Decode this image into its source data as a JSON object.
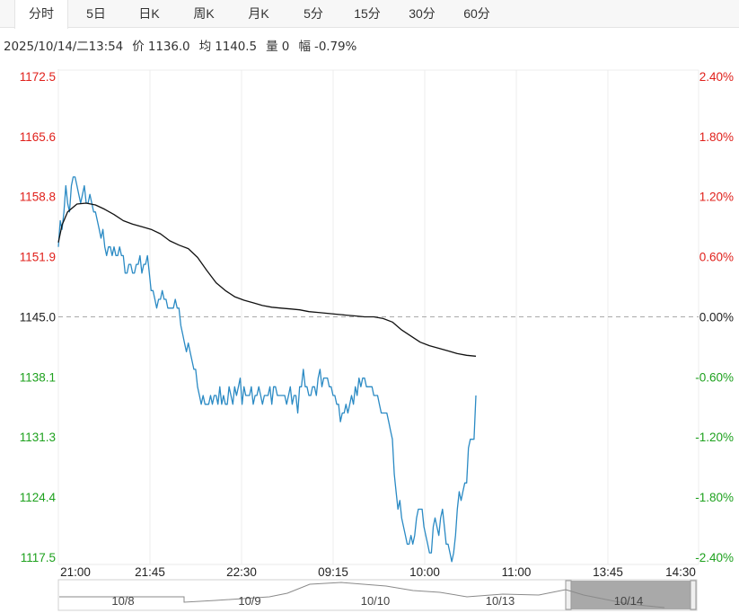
{
  "tabs": [
    {
      "label": "分时",
      "active": true
    },
    {
      "label": "5日"
    },
    {
      "label": "日K"
    },
    {
      "label": "周K"
    },
    {
      "label": "月K"
    },
    {
      "label": "5分"
    },
    {
      "label": "15分"
    },
    {
      "label": "30分"
    },
    {
      "label": "60分"
    }
  ],
  "info": {
    "datetime": "2025/10/14/二13:54",
    "price": "价 1136.0",
    "avg": "均 1140.5",
    "volume": "量 0",
    "change": "幅 -0.79%"
  },
  "colors": {
    "up": "#e0201b",
    "down": "#1ea11e",
    "neutral": "#222222",
    "price_line": "#2a8ac4",
    "avg_line": "#111111"
  },
  "navigator": {
    "dates": [
      "10/8",
      "10/9",
      "10/10",
      "10/13",
      "10/14"
    ]
  },
  "chart_data": {
    "type": "line",
    "base_price": 1145.0,
    "ylim": [
      1117.5,
      1172.5
    ],
    "y_ticks_left": [
      "1172.5",
      "1165.6",
      "1158.8",
      "1151.9",
      "1145.0",
      "1138.1",
      "1131.3",
      "1124.4",
      "1117.5"
    ],
    "y_ticks_right": [
      "2.40%",
      "1.80%",
      "1.20%",
      "0.60%",
      "0.00%",
      "-0.60%",
      "-1.20%",
      "-1.80%",
      "-2.40%"
    ],
    "x_ticks": [
      "21:00",
      "21:45",
      "22:30",
      "09:15",
      "10:00",
      "11:00",
      "13:45",
      "14:30"
    ],
    "x_range_minutes": [
      0,
      345
    ],
    "grid": true,
    "series": [
      {
        "name": "价",
        "points": [
          [
            0,
            1153
          ],
          [
            1,
            1156
          ],
          [
            2,
            1155
          ],
          [
            3,
            1157
          ],
          [
            4,
            1160
          ],
          [
            5,
            1158
          ],
          [
            6,
            1157
          ],
          [
            7,
            1160
          ],
          [
            8,
            1161
          ],
          [
            9,
            1161
          ],
          [
            10,
            1160
          ],
          [
            11,
            1159
          ],
          [
            12,
            1158
          ],
          [
            13,
            1159
          ],
          [
            14,
            1160
          ],
          [
            15,
            1158
          ],
          [
            16,
            1158
          ],
          [
            17,
            1159
          ],
          [
            18,
            1158
          ],
          [
            19,
            1157
          ],
          [
            20,
            1157
          ],
          [
            21,
            1156
          ],
          [
            22,
            1155
          ],
          [
            23,
            1154
          ],
          [
            24,
            1155
          ],
          [
            25,
            1153
          ],
          [
            26,
            1152
          ],
          [
            27,
            1153
          ],
          [
            28,
            1153
          ],
          [
            29,
            1152
          ],
          [
            30,
            1153
          ],
          [
            31,
            1152
          ],
          [
            32,
            1152
          ],
          [
            33,
            1153
          ],
          [
            34,
            1152
          ],
          [
            35,
            1152
          ],
          [
            36,
            1150
          ],
          [
            37,
            1150
          ],
          [
            38,
            1151
          ],
          [
            39,
            1151
          ],
          [
            40,
            1150
          ],
          [
            41,
            1150
          ],
          [
            42,
            1151
          ],
          [
            43,
            1151
          ],
          [
            44,
            1152
          ],
          [
            45,
            1150
          ],
          [
            46,
            1151
          ],
          [
            47,
            1151
          ],
          [
            48,
            1152
          ],
          [
            49,
            1150
          ],
          [
            50,
            1148
          ],
          [
            51,
            1148
          ],
          [
            52,
            1147
          ],
          [
            53,
            1146
          ],
          [
            54,
            1147
          ],
          [
            55,
            1147
          ],
          [
            56,
            1148
          ],
          [
            57,
            1147
          ],
          [
            58,
            1147
          ],
          [
            59,
            1146
          ],
          [
            60,
            1146
          ],
          [
            61,
            1146
          ],
          [
            62,
            1146
          ],
          [
            63,
            1147
          ],
          [
            64,
            1146
          ],
          [
            65,
            1146
          ],
          [
            66,
            1144
          ],
          [
            67,
            1143
          ],
          [
            68,
            1142
          ],
          [
            69,
            1141
          ],
          [
            70,
            1142
          ],
          [
            71,
            1141
          ],
          [
            72,
            1140
          ],
          [
            73,
            1139
          ],
          [
            74,
            1139
          ],
          [
            75,
            1137
          ],
          [
            76,
            1136
          ],
          [
            77,
            1135
          ],
          [
            78,
            1136
          ],
          [
            79,
            1135
          ],
          [
            80,
            1135
          ],
          [
            81,
            1135
          ],
          [
            82,
            1136
          ],
          [
            83,
            1135
          ],
          [
            84,
            1136
          ],
          [
            85,
            1136
          ],
          [
            86,
            1135
          ],
          [
            87,
            1137
          ],
          [
            88,
            1135
          ],
          [
            89,
            1136
          ],
          [
            90,
            1135
          ],
          [
            91,
            1135
          ],
          [
            92,
            1137
          ],
          [
            93,
            1136
          ],
          [
            94,
            1135
          ],
          [
            95,
            1137
          ],
          [
            96,
            1136
          ],
          [
            97,
            1137
          ],
          [
            98,
            1138
          ],
          [
            99,
            1135
          ],
          [
            100,
            1137
          ],
          [
            101,
            1136
          ],
          [
            102,
            1136
          ],
          [
            103,
            1136
          ],
          [
            104,
            1137
          ],
          [
            105,
            1135
          ],
          [
            106,
            1136
          ],
          [
            107,
            1136
          ],
          [
            108,
            1137
          ],
          [
            109,
            1136
          ],
          [
            110,
            1135
          ],
          [
            111,
            1136
          ],
          [
            112,
            1136
          ],
          [
            113,
            1136
          ],
          [
            114,
            1137
          ],
          [
            115,
            1135
          ],
          [
            116,
            1137
          ],
          [
            117,
            1137
          ],
          [
            118,
            1136
          ],
          [
            119,
            1136
          ],
          [
            120,
            1136
          ],
          [
            121,
            1136
          ],
          [
            122,
            1136
          ],
          [
            123,
            1135
          ],
          [
            124,
            1136
          ],
          [
            125,
            1137
          ],
          [
            126,
            1135
          ],
          [
            127,
            1136
          ],
          [
            128,
            1136
          ],
          [
            129,
            1134
          ],
          [
            130,
            1137
          ],
          [
            131,
            1137
          ],
          [
            132,
            1139
          ],
          [
            133,
            1137
          ],
          [
            134,
            1137
          ],
          [
            135,
            1136
          ],
          [
            136,
            1136
          ],
          [
            137,
            1137
          ],
          [
            138,
            1137
          ],
          [
            139,
            1136
          ],
          [
            140,
            1138
          ],
          [
            141,
            1139
          ],
          [
            142,
            1137
          ],
          [
            143,
            1138
          ],
          [
            144,
            1138
          ],
          [
            145,
            1138
          ],
          [
            146,
            1137
          ],
          [
            147,
            1137
          ],
          [
            148,
            1136
          ],
          [
            149,
            1136
          ],
          [
            150,
            1135
          ],
          [
            151,
            1135
          ],
          [
            152,
            1133
          ],
          [
            153,
            1134
          ],
          [
            154,
            1134
          ],
          [
            155,
            1135
          ],
          [
            156,
            1134
          ],
          [
            157,
            1135
          ],
          [
            158,
            1136
          ],
          [
            159,
            1135
          ],
          [
            160,
            1137
          ],
          [
            161,
            1136
          ],
          [
            162,
            1138
          ],
          [
            163,
            1137
          ],
          [
            164,
            1138
          ],
          [
            165,
            1138
          ],
          [
            166,
            1137
          ],
          [
            167,
            1137
          ],
          [
            168,
            1137
          ],
          [
            169,
            1137
          ],
          [
            170,
            1136
          ],
          [
            171,
            1136
          ],
          [
            172,
            1136
          ],
          [
            173,
            1135
          ],
          [
            174,
            1134
          ],
          [
            175,
            1134
          ],
          [
            176,
            1134
          ],
          [
            177,
            1134
          ],
          [
            178,
            1133
          ],
          [
            179,
            1132
          ],
          [
            180,
            1131
          ],
          [
            181,
            1127
          ],
          [
            182,
            1125
          ],
          [
            183,
            1123
          ],
          [
            184,
            1124
          ],
          [
            185,
            1122
          ],
          [
            186,
            1121
          ],
          [
            187,
            1120
          ],
          [
            188,
            1119
          ],
          [
            189,
            1119
          ],
          [
            190,
            1120
          ],
          [
            191,
            1119
          ],
          [
            192,
            1120
          ],
          [
            193,
            1122
          ],
          [
            194,
            1123
          ],
          [
            195,
            1123
          ],
          [
            196,
            1123
          ],
          [
            197,
            1121
          ],
          [
            198,
            1120
          ],
          [
            199,
            1119
          ],
          [
            200,
            1118
          ],
          [
            201,
            1118
          ],
          [
            202,
            1121
          ],
          [
            203,
            1122
          ],
          [
            204,
            1121
          ],
          [
            205,
            1120
          ],
          [
            206,
            1122
          ],
          [
            207,
            1123
          ],
          [
            208,
            1121
          ],
          [
            209,
            1119
          ],
          [
            210,
            1119
          ],
          [
            211,
            1118
          ],
          [
            212,
            1117
          ],
          [
            213,
            1118
          ],
          [
            214,
            1120
          ],
          [
            215,
            1123
          ],
          [
            216,
            1125
          ],
          [
            217,
            1124
          ],
          [
            218,
            1125
          ],
          [
            219,
            1126
          ],
          [
            220,
            1126
          ],
          [
            221,
            1130
          ],
          [
            222,
            1131
          ],
          [
            223,
            1131
          ],
          [
            224,
            1131
          ],
          [
            225,
            1136
          ]
        ]
      },
      {
        "name": "均",
        "points": [
          [
            0,
            1153.5
          ],
          [
            2,
            1155.5
          ],
          [
            5,
            1157.0
          ],
          [
            10,
            1157.9
          ],
          [
            15,
            1158.0
          ],
          [
            20,
            1157.8
          ],
          [
            25,
            1157.3
          ],
          [
            30,
            1156.7
          ],
          [
            35,
            1156.0
          ],
          [
            40,
            1155.6
          ],
          [
            45,
            1155.3
          ],
          [
            50,
            1155.0
          ],
          [
            55,
            1154.5
          ],
          [
            60,
            1153.7
          ],
          [
            65,
            1153.2
          ],
          [
            70,
            1152.8
          ],
          [
            75,
            1151.8
          ],
          [
            80,
            1150.3
          ],
          [
            85,
            1148.9
          ],
          [
            90,
            1148.0
          ],
          [
            95,
            1147.3
          ],
          [
            100,
            1146.9
          ],
          [
            105,
            1146.6
          ],
          [
            110,
            1146.3
          ],
          [
            115,
            1146.1
          ],
          [
            120,
            1146.0
          ],
          [
            125,
            1145.9
          ],
          [
            130,
            1145.8
          ],
          [
            135,
            1145.6
          ],
          [
            140,
            1145.5
          ],
          [
            145,
            1145.4
          ],
          [
            150,
            1145.3
          ],
          [
            155,
            1145.2
          ],
          [
            160,
            1145.1
          ],
          [
            165,
            1145.0
          ],
          [
            170,
            1145.0
          ],
          [
            175,
            1144.8
          ],
          [
            180,
            1144.4
          ],
          [
            185,
            1143.5
          ],
          [
            190,
            1142.8
          ],
          [
            195,
            1142.1
          ],
          [
            200,
            1141.7
          ],
          [
            205,
            1141.4
          ],
          [
            210,
            1141.1
          ],
          [
            215,
            1140.8
          ],
          [
            220,
            1140.6
          ],
          [
            225,
            1140.5
          ]
        ]
      }
    ]
  }
}
